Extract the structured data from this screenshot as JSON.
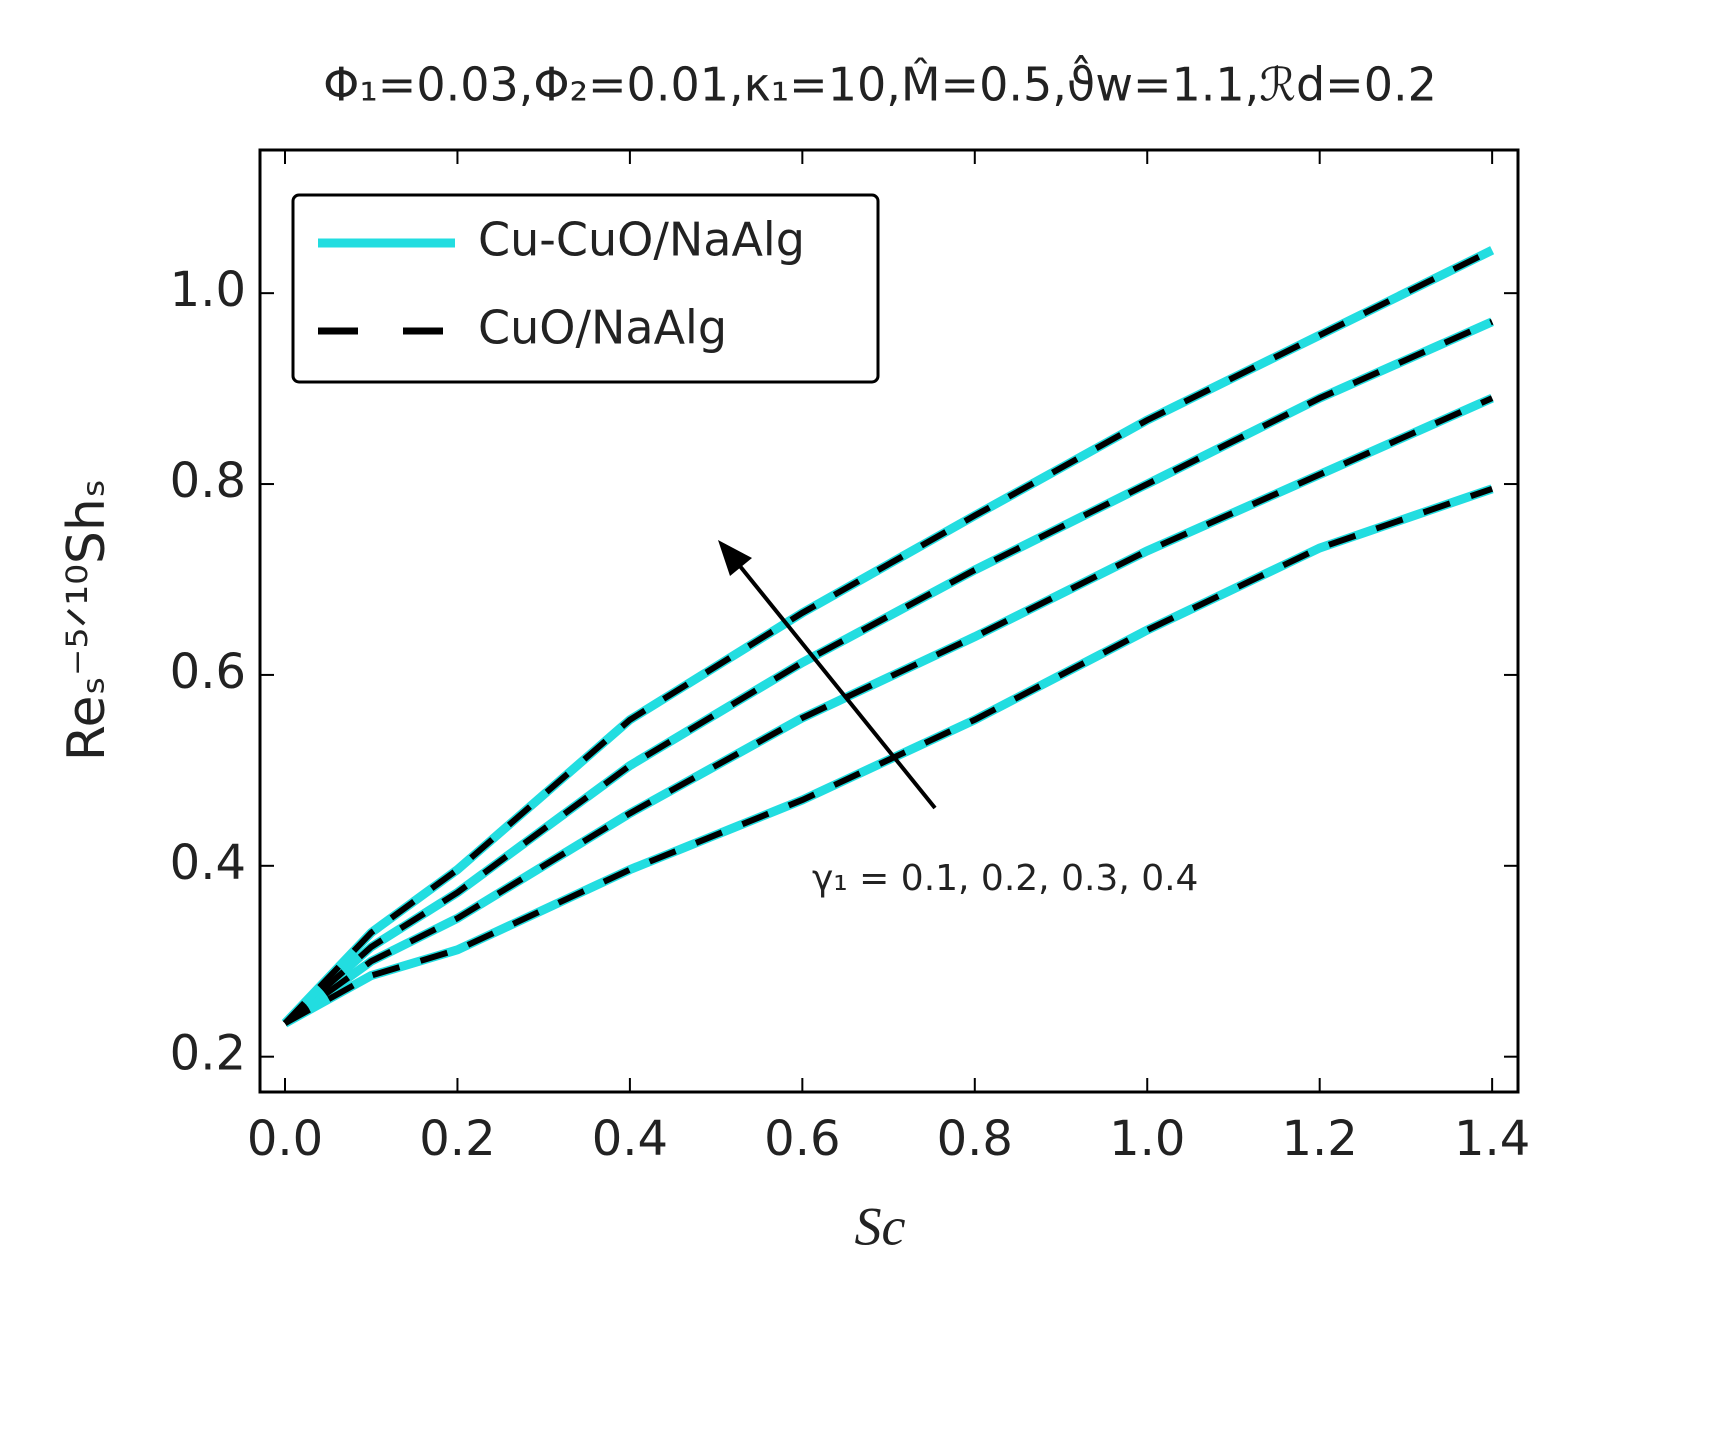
{
  "chart_data": {
    "type": "line",
    "title": "Φ₁=0.03,Φ₂=0.01,κ₁=10,M̂=0.5,ϑ̂w=1.1,ℛd=0.2",
    "x_label": "Sc",
    "y_label": "Reₛ⁻⁵ᐟ¹⁰Shₛ",
    "annotation": "γ₁ = 0.1, 0.2, 0.3, 0.4",
    "x": [
      0,
      0.1,
      0.2,
      0.4,
      0.6,
      0.8,
      1.0,
      1.2,
      1.4
    ],
    "series": [
      {
        "name": "Cu-CuO/NaAlg",
        "color": "#22dde0",
        "dashed": false,
        "values": [
          [
            0.235,
            0.285,
            0.312,
            0.396,
            0.469,
            0.553,
            0.647,
            0.733,
            0.795
          ],
          [
            0.235,
            0.3,
            0.345,
            0.455,
            0.555,
            0.64,
            0.73,
            0.81,
            0.89
          ],
          [
            0.235,
            0.315,
            0.372,
            0.505,
            0.613,
            0.71,
            0.8,
            0.89,
            0.97
          ],
          [
            0.235,
            0.33,
            0.396,
            0.553,
            0.665,
            0.767,
            0.867,
            0.956,
            1.045
          ]
        ]
      },
      {
        "name": "CuO/NaAlg",
        "color": "#000000",
        "dashed": true,
        "values": [
          [
            0.235,
            0.285,
            0.312,
            0.396,
            0.469,
            0.553,
            0.647,
            0.733,
            0.795
          ],
          [
            0.235,
            0.3,
            0.345,
            0.455,
            0.555,
            0.64,
            0.73,
            0.81,
            0.89
          ],
          [
            0.235,
            0.315,
            0.372,
            0.505,
            0.613,
            0.71,
            0.8,
            0.89,
            0.97
          ],
          [
            0.235,
            0.33,
            0.396,
            0.553,
            0.665,
            0.767,
            0.867,
            0.956,
            1.045
          ]
        ]
      }
    ],
    "xlim": [
      -0.029,
      1.43
    ],
    "ylim": [
      0.163,
      1.15
    ],
    "xticks": [
      {
        "value": 0,
        "label": "0.0"
      },
      0.2,
      0.4,
      0.6,
      0.8,
      {
        "value": 1,
        "label": "1.0"
      },
      1.2,
      1.4
    ],
    "yticks": [
      0.2,
      0.4,
      0.6,
      0.8,
      {
        "value": 1,
        "label": "1.0"
      }
    ],
    "grid": false
  }
}
